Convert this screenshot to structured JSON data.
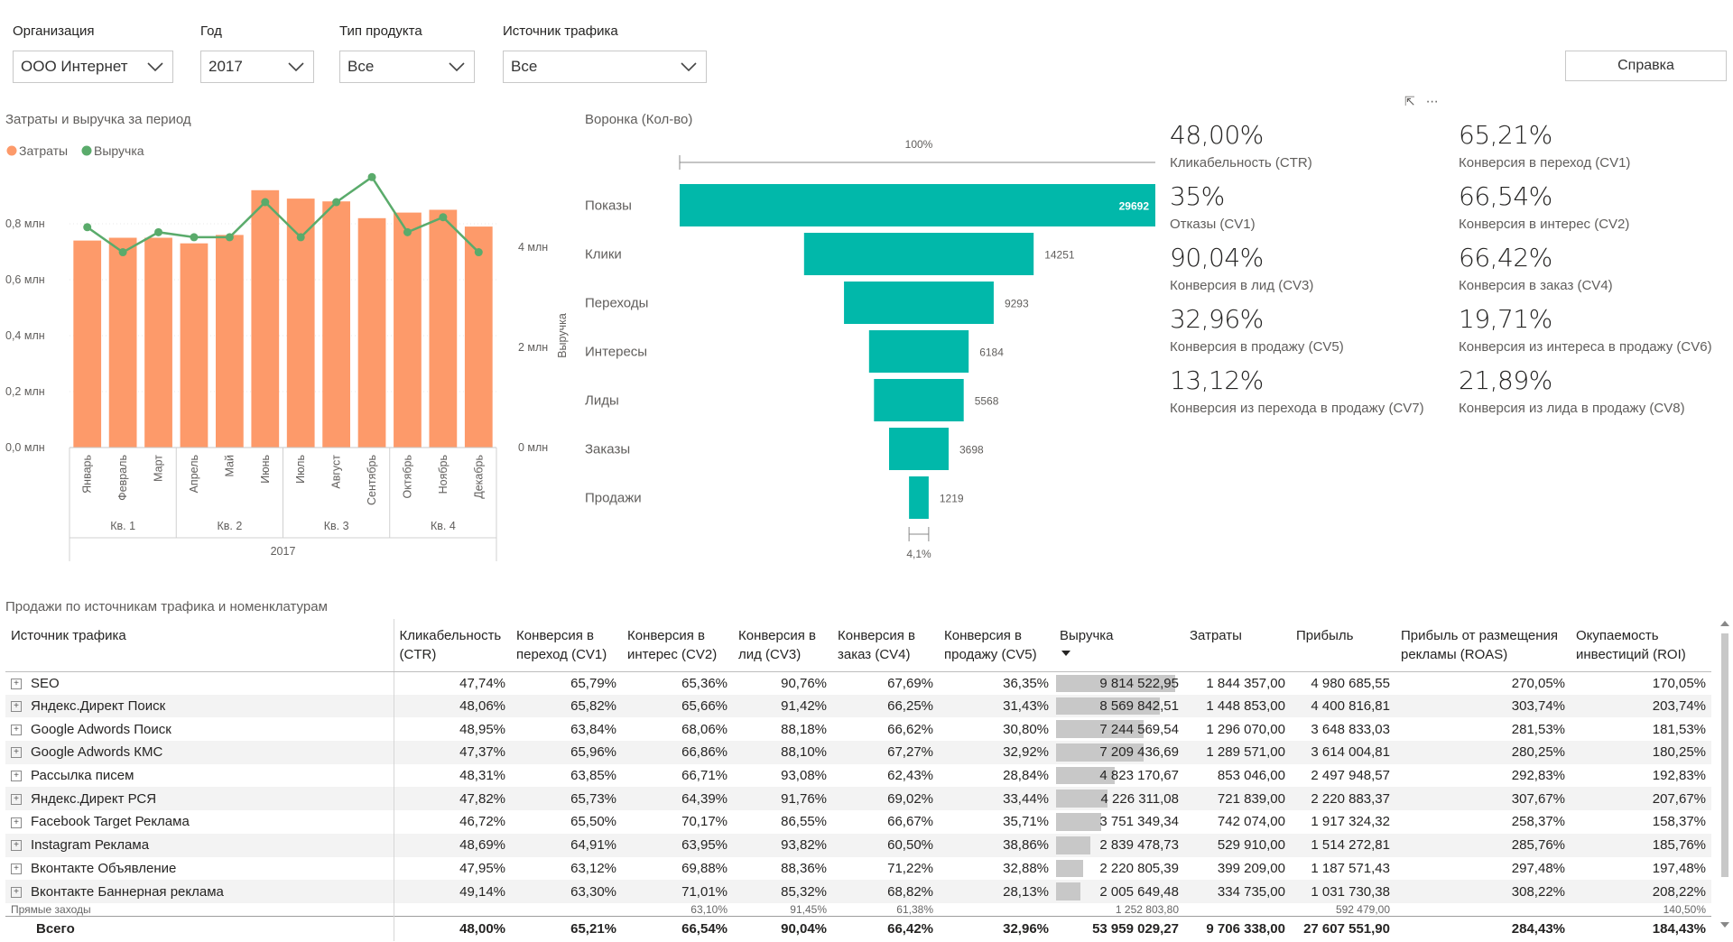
{
  "filters": [
    {
      "label": "Организация",
      "value": "ООО Интернет"
    },
    {
      "label": "Год",
      "value": "2017"
    },
    {
      "label": "Тип продукта",
      "value": "Все"
    },
    {
      "label": "Источник трафика",
      "value": "Все"
    }
  ],
  "help_button": "Справка",
  "combo_chart": {
    "title": "Затраты и выручка за период",
    "legend": [
      {
        "name": "Затраты",
        "color": "#fd9a6a"
      },
      {
        "name": "Выручка",
        "color": "#5aab6b"
      }
    ],
    "left_ticks": [
      "0,8 млн",
      "0,6 млн",
      "0,4 млн",
      "0,2 млн",
      "0,0 млн"
    ],
    "right_ticks": [
      "4 млн",
      "2 млн",
      "0 млн"
    ],
    "right_axis_label": "Выручка",
    "year": "2017",
    "quarters": [
      "Кв. 1",
      "Кв. 2",
      "Кв. 3",
      "Кв. 4"
    ]
  },
  "chart_data": {
    "type": "bar",
    "categories": [
      "Январь",
      "Февраль",
      "Март",
      "Апрель",
      "Май",
      "Июнь",
      "Июль",
      "Август",
      "Сентябрь",
      "Октябрь",
      "Ноябрь",
      "Декабрь"
    ],
    "series": [
      {
        "name": "Затраты",
        "type": "bar",
        "axis": "left",
        "values": [
          0.74,
          0.75,
          0.75,
          0.73,
          0.76,
          0.92,
          0.89,
          0.88,
          0.82,
          0.84,
          0.85,
          0.79
        ]
      },
      {
        "name": "Выручка",
        "type": "line",
        "axis": "right",
        "values": [
          4.4,
          3.9,
          4.3,
          4.2,
          4.2,
          4.9,
          4.2,
          4.9,
          5.4,
          4.3,
          4.6,
          3.9
        ]
      }
    ],
    "ylim_left": [
      0,
      0.92
    ],
    "ylim_right": [
      0,
      5.4
    ]
  },
  "funnel": {
    "title": "Воронка (Кол-во)",
    "top_pct": "100%",
    "bottom_pct": "4,1%",
    "color": "#01b8aa",
    "stages": [
      {
        "label": "Показы",
        "value": 29692
      },
      {
        "label": "Клики",
        "value": 14251
      },
      {
        "label": "Переходы",
        "value": 9293
      },
      {
        "label": "Интересы",
        "value": 6184
      },
      {
        "label": "Лиды",
        "value": 5568
      },
      {
        "label": "Заказы",
        "value": 3698
      },
      {
        "label": "Продажи",
        "value": 1219
      }
    ]
  },
  "kpis": [
    {
      "value": "48,00%",
      "label": "Кликабельность (CTR)"
    },
    {
      "value": "65,21%",
      "label": "Конверсия в переход (CV1)"
    },
    {
      "value": "35%",
      "label": "Отказы (CV1)"
    },
    {
      "value": "66,54%",
      "label": "Конверсия в интерес (CV2)"
    },
    {
      "value": "90,04%",
      "label": "Конверсия в лид (CV3)"
    },
    {
      "value": "66,42%",
      "label": "Конверсия в заказ (CV4)"
    },
    {
      "value": "32,96%",
      "label": "Конверсия в продажу (CV5)"
    },
    {
      "value": "19,71%",
      "label": "Конверсия из интереса в продажу (CV6)"
    },
    {
      "value": "13,12%",
      "label": "Конверсия из перехода в продажу (CV7)"
    },
    {
      "value": "21,89%",
      "label": "Конверсия из лида в продажу (CV8)"
    }
  ],
  "table": {
    "title": "Продажи по источникам трафика и номенклатурам",
    "headers": [
      "Источник трафика",
      "Кликабельность (CTR)",
      "Конверсия в переход (CV1)",
      "Конверсия в интерес (CV2)",
      "Конверсия в лид (CV3)",
      "Конверсия в заказ (CV4)",
      "Конверсия в продажу (CV5)",
      "Выручка",
      "Затраты",
      "Прибыль",
      "Прибыль от размещения рекламы (ROAS)",
      "Окупаемость инвестиций (ROI)"
    ],
    "rows": [
      {
        "cells": [
          "SEO",
          "47,74%",
          "65,79%",
          "65,36%",
          "90,76%",
          "67,69%",
          "36,35%",
          "9 814 522,95",
          "1 844 357,00",
          "4 980 685,55",
          "270,05%",
          "170,05%"
        ],
        "rev": 9814522.95
      },
      {
        "cells": [
          "Яндекс.Директ Поиск",
          "48,06%",
          "65,82%",
          "65,66%",
          "91,42%",
          "66,25%",
          "31,43%",
          "8 569 842,51",
          "1 448 853,00",
          "4 400 816,81",
          "303,74%",
          "203,74%"
        ],
        "rev": 8569842.51
      },
      {
        "cells": [
          "Google Adwords Поиск",
          "48,95%",
          "63,84%",
          "68,06%",
          "88,18%",
          "66,62%",
          "30,80%",
          "7 244 569,54",
          "1 296 070,00",
          "3 648 833,03",
          "281,53%",
          "181,53%"
        ],
        "rev": 7244569.54
      },
      {
        "cells": [
          "Google Adwords КМС",
          "47,37%",
          "65,96%",
          "66,86%",
          "88,10%",
          "67,27%",
          "32,92%",
          "7 209 436,69",
          "1 289 571,00",
          "3 614 004,81",
          "280,25%",
          "180,25%"
        ],
        "rev": 7209436.69
      },
      {
        "cells": [
          "Рассылка писем",
          "48,31%",
          "63,85%",
          "66,71%",
          "93,08%",
          "62,43%",
          "28,84%",
          "4 823 170,67",
          "853 046,00",
          "2 497 948,57",
          "292,83%",
          "192,83%"
        ],
        "rev": 4823170.67
      },
      {
        "cells": [
          "Яндекс.Директ РСЯ",
          "47,82%",
          "65,73%",
          "64,39%",
          "91,76%",
          "69,02%",
          "33,44%",
          "4 226 311,08",
          "721 839,00",
          "2 220 883,37",
          "307,67%",
          "207,67%"
        ],
        "rev": 4226311.08
      },
      {
        "cells": [
          "Facebook Target Реклама",
          "46,72%",
          "65,50%",
          "70,17%",
          "86,55%",
          "66,67%",
          "35,71%",
          "3 751 349,34",
          "742 074,00",
          "1 917 324,32",
          "258,37%",
          "158,37%"
        ],
        "rev": 3751349.34
      },
      {
        "cells": [
          "Instagram Реклама",
          "48,69%",
          "64,91%",
          "63,95%",
          "93,82%",
          "60,50%",
          "38,86%",
          "2 839 478,73",
          "529 910,00",
          "1 514 272,81",
          "285,76%",
          "185,76%"
        ],
        "rev": 2839478.73
      },
      {
        "cells": [
          "Вконтакте Объявление",
          "47,95%",
          "63,12%",
          "69,88%",
          "88,36%",
          "71,22%",
          "32,88%",
          "2 220 805,39",
          "399 209,00",
          "1 187 571,43",
          "297,48%",
          "197,48%"
        ],
        "rev": 2220805.39
      },
      {
        "cells": [
          "Вконтакте Баннерная реклама",
          "49,14%",
          "63,30%",
          "71,01%",
          "85,32%",
          "68,82%",
          "28,13%",
          "2 005 649,48",
          "334 735,00",
          "1 031 730,38",
          "308,22%",
          "208,22%"
        ],
        "rev": 2005649.48
      }
    ],
    "partial_row": [
      "Прямые заходы",
      "",
      "",
      "63,10%",
      "91,45%",
      "61,38%",
      "",
      "1 252 803,80",
      "",
      "592 479,00",
      "",
      "140,50%"
    ],
    "total": [
      "Всего",
      "48,00%",
      "65,21%",
      "66,54%",
      "90,04%",
      "66,42%",
      "32,96%",
      "53 959 029,27",
      "9 706 338,00",
      "27 607 551,90",
      "284,43%",
      "184,43%"
    ]
  }
}
